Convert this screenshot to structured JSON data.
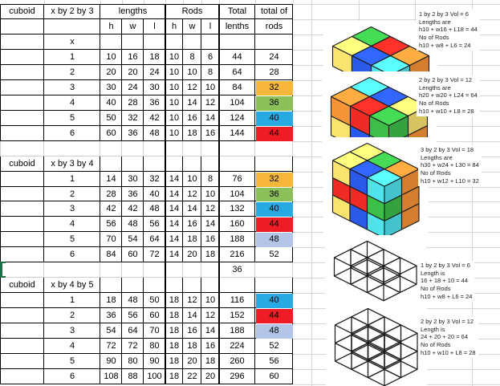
{
  "app": {
    "kind": "spreadsheet-worksheet"
  },
  "table": {
    "corner_label": "cuboid",
    "columns": {
      "lengths_group": "lengths",
      "rods_group": "Rods",
      "sub_headers": [
        "h",
        "w",
        "l",
        "h",
        "w",
        "l"
      ],
      "total_col": [
        "Total",
        "lenths"
      ],
      "total_rods_col": [
        "total of",
        "rods"
      ]
    },
    "x_row_label": "x",
    "sections": [
      {
        "cuboid_label": "cuboid",
        "title": "x by 2 by 3",
        "rows": [
          {
            "n": "1",
            "lengths": [
              "10",
              "16",
              "18"
            ],
            "rods": [
              "10",
              "8",
              "6"
            ],
            "total": "44",
            "total_rods": "24",
            "highlight": null
          },
          {
            "n": "2",
            "lengths": [
              "20",
              "20",
              "24"
            ],
            "rods": [
              "10",
              "10",
              "8"
            ],
            "total": "64",
            "total_rods": "28",
            "highlight": null
          },
          {
            "n": "3",
            "lengths": [
              "30",
              "24",
              "30"
            ],
            "rods": [
              "10",
              "12",
              "10"
            ],
            "total": "84",
            "total_rods": "32",
            "highlight": "orange"
          },
          {
            "n": "4",
            "lengths": [
              "40",
              "28",
              "36"
            ],
            "rods": [
              "10",
              "14",
              "12"
            ],
            "total": "104",
            "total_rods": "36",
            "highlight": "green"
          },
          {
            "n": "5",
            "lengths": [
              "50",
              "32",
              "42"
            ],
            "rods": [
              "10",
              "16",
              "14"
            ],
            "total": "124",
            "total_rods": "40",
            "highlight": "blue"
          },
          {
            "n": "6",
            "lengths": [
              "60",
              "36",
              "48"
            ],
            "rods": [
              "10",
              "18",
              "16"
            ],
            "total": "144",
            "total_rods": "44",
            "highlight": "red"
          }
        ]
      },
      {
        "cuboid_label": "cuboid",
        "title": "x by 3 by 4",
        "rows": [
          {
            "n": "1",
            "lengths": [
              "14",
              "30",
              "32"
            ],
            "rods": [
              "14",
              "10",
              "8"
            ],
            "total": "76",
            "total_rods": "32",
            "highlight": "orange"
          },
          {
            "n": "2",
            "lengths": [
              "28",
              "36",
              "40"
            ],
            "rods": [
              "14",
              "12",
              "10"
            ],
            "total": "104",
            "total_rods": "36",
            "highlight": "green"
          },
          {
            "n": "3",
            "lengths": [
              "42",
              "42",
              "48"
            ],
            "rods": [
              "14",
              "14",
              "12"
            ],
            "total": "132",
            "total_rods": "40",
            "highlight": "blue"
          },
          {
            "n": "4",
            "lengths": [
              "56",
              "48",
              "56"
            ],
            "rods": [
              "14",
              "16",
              "14"
            ],
            "total": "160",
            "total_rods": "44",
            "highlight": "red"
          },
          {
            "n": "5",
            "lengths": [
              "70",
              "54",
              "64"
            ],
            "rods": [
              "14",
              "18",
              "16"
            ],
            "total": "188",
            "total_rods": "48",
            "highlight": "lavender"
          },
          {
            "n": "6",
            "lengths": [
              "84",
              "60",
              "72"
            ],
            "rods": [
              "14",
              "20",
              "18"
            ],
            "total": "216",
            "total_rods": "52",
            "highlight": null
          }
        ],
        "after_total": "36"
      },
      {
        "cuboid_label": "cuboid",
        "title": "x by 4 by 5",
        "rows": [
          {
            "n": "1",
            "lengths": [
              "18",
              "48",
              "50"
            ],
            "rods": [
              "18",
              "12",
              "10"
            ],
            "total": "116",
            "total_rods": "40",
            "highlight": "blue"
          },
          {
            "n": "2",
            "lengths": [
              "36",
              "56",
              "60"
            ],
            "rods": [
              "18",
              "14",
              "12"
            ],
            "total": "152",
            "total_rods": "44",
            "highlight": "red"
          },
          {
            "n": "3",
            "lengths": [
              "54",
              "64",
              "70"
            ],
            "rods": [
              "18",
              "16",
              "14"
            ],
            "total": "188",
            "total_rods": "48",
            "highlight": "lavender"
          },
          {
            "n": "4",
            "lengths": [
              "72",
              "72",
              "80"
            ],
            "rods": [
              "18",
              "18",
              "16"
            ],
            "total": "224",
            "total_rods": "52",
            "highlight": null
          },
          {
            "n": "5",
            "lengths": [
              "90",
              "80",
              "90"
            ],
            "rods": [
              "18",
              "20",
              "18"
            ],
            "total": "260",
            "total_rods": "56",
            "highlight": null
          },
          {
            "n": "6",
            "lengths": [
              "108",
              "88",
              "100"
            ],
            "rods": [
              "18",
              "22",
              "20"
            ],
            "total": "296",
            "total_rods": "60",
            "highlight": null
          }
        ]
      }
    ],
    "highlight_colors": {
      "orange": "#F6B63C",
      "green": "#8CC05B",
      "blue": "#29A9E1",
      "red": "#EE1C25",
      "lavender": "#B4C6E7"
    }
  },
  "selection": {
    "color": "#1E7145"
  },
  "figures": {
    "palette": {
      "yellow": "#FAE36E",
      "red": "#EE2B24",
      "green": "#3CBE49",
      "blue": "#2B59E8",
      "cyan": "#4FE3EE",
      "orange": "#F79438",
      "wire": "#1a1a1a"
    },
    "items": [
      {
        "id": "solid-1x2x3",
        "kind": "solid",
        "dims": [
          3,
          2,
          1
        ],
        "layers": [
          [
            [
              "yellow",
              "blue",
              "cyan"
            ],
            [
              "green",
              "red",
              "orange"
            ]
          ]
        ],
        "annotation": [
          "1 by 2 by 3 Vol = 6",
          "Lengths are",
          "h10 + w16 + L18 = 44",
          "No of Rods",
          "h10 + w8 + L6 = 24"
        ]
      },
      {
        "id": "solid-2x2x3",
        "kind": "solid",
        "dims": [
          3,
          2,
          2
        ],
        "layers": [
          [
            [
              "yellow",
              "blue",
              "cyan"
            ],
            [
              "red",
              "green",
              "orange"
            ]
          ],
          [
            [
              "orange",
              "red",
              "green"
            ],
            [
              "cyan",
              "blue",
              "yellow"
            ]
          ]
        ],
        "annotation": [
          "2 by 2 by 3 Vol = 12",
          "Lengths are",
          "h20 + w20 + L24 = 64",
          "No of Rods",
          "h10 + w10 + L8 = 28"
        ]
      },
      {
        "id": "solid-3x2x3",
        "kind": "solid",
        "dims": [
          3,
          2,
          3
        ],
        "layers": [
          [
            [
              "yellow",
              "blue",
              "cyan"
            ],
            [
              "red",
              "green",
              "orange"
            ]
          ],
          [
            [
              "red",
              "red",
              "green"
            ],
            [
              "blue",
              "cyan",
              "orange"
            ]
          ],
          [
            [
              "yellow",
              "blue",
              "cyan"
            ],
            [
              "yellow",
              "green",
              "orange"
            ]
          ]
        ],
        "annotation": [
          "3 by 2 by 3 Vol = 18",
          "Lengths are",
          "h30 + w24 + L30 = 84",
          "No of Rods",
          "h10 + w12 + L10 = 32"
        ]
      },
      {
        "id": "wire-1x2x3",
        "kind": "wire",
        "dims": [
          3,
          2,
          1
        ],
        "annotation": [
          "1 by 2 by 3 Vol = 6",
          "Length is",
          "16 + 18 + 10 = 44",
          "No of Rods",
          "h10 + w8 + L6 = 24"
        ]
      },
      {
        "id": "wire-2x2x3",
        "kind": "wire",
        "dims": [
          3,
          2,
          2
        ],
        "annotation": [
          "2 by 2 by 3 Vol = 12",
          "Length is",
          "24 + 20 + 20 = 64",
          "No of Rods",
          "h10 + w10 + L8 = 28"
        ]
      }
    ]
  }
}
